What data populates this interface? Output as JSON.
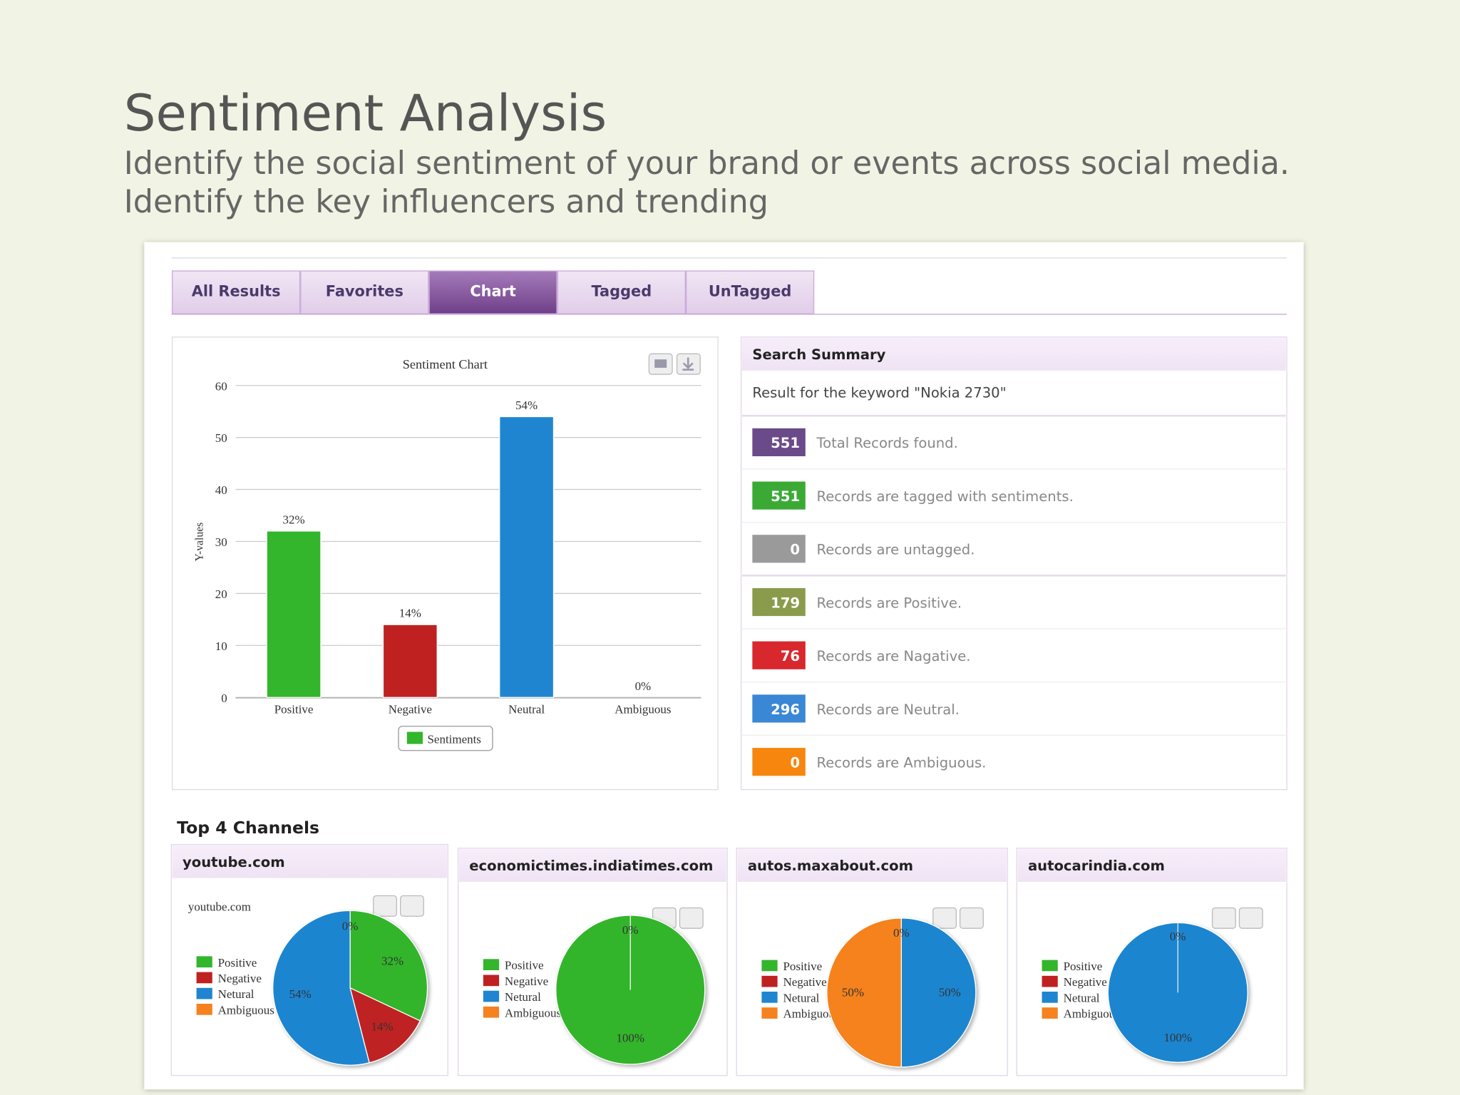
{
  "header": {
    "title": "Sentiment Analysis",
    "subtitle": [
      "Identify the social sentiment of your brand or events across social media.",
      "Identify the key influencers and trending"
    ]
  },
  "tabs": {
    "items": [
      "All Results",
      "Favorites",
      "Chart",
      "Tagged",
      "UnTagged"
    ],
    "active": 2
  },
  "chart_data": {
    "type": "bar",
    "title": "Sentiment Chart",
    "y_label": "Y-values",
    "categories": [
      "Positive",
      "Negative",
      "Neutral",
      "Ambiguous"
    ],
    "values": [
      32,
      14,
      54,
      0
    ],
    "value_labels": [
      "32%",
      "14%",
      "54%",
      "0%"
    ],
    "colors": [
      "#33b52c",
      "#bf2121",
      "#1f85d0",
      "#f5821f"
    ],
    "ylim": [
      0,
      60
    ],
    "yticks": [
      0,
      10,
      20,
      30,
      40,
      50,
      60
    ],
    "grid": true,
    "legend": "Sentiments"
  },
  "summary": {
    "title": "Search Summary",
    "keyword_text": "Result for the keyword \"Nokia 2730\"",
    "rows": [
      {
        "count": 551,
        "text": "Total Records found.",
        "color": "#6b4a8a"
      },
      {
        "count": 551,
        "text": "Records are tagged with sentiments.",
        "color": "#3aaa35"
      },
      {
        "count": 0,
        "text": "Records are untagged.",
        "color": "#9a9a9a"
      },
      {
        "count": 179,
        "text": "Records are Positive.",
        "color": "#8a9c4c"
      },
      {
        "count": 76,
        "text": "Records are Nagative.",
        "color": "#d9272e"
      },
      {
        "count": 296,
        "text": "Records are Neutral.",
        "color": "#3a87d5"
      },
      {
        "count": 0,
        "text": "Records are Ambiguous.",
        "color": "#f7860e"
      }
    ]
  },
  "channels": {
    "title": "Top 4 Channels",
    "legend": [
      "Positive",
      "Negative",
      "Netural",
      "Ambiguous"
    ],
    "colors": [
      "#33b52c",
      "#bf2121",
      "#1f85d0",
      "#f5821f"
    ],
    "items": [
      {
        "name": "youtube.com",
        "type": "pie",
        "chart_title": "youtube.com",
        "values": [
          32,
          14,
          54,
          0
        ],
        "value_labels": [
          "32%",
          "14%",
          "54%",
          "0%"
        ]
      },
      {
        "name": "economictimes.indiatimes.com",
        "type": "pie",
        "values": [
          100,
          0,
          0,
          0
        ],
        "value_labels": [
          "100%",
          "0%",
          null,
          null
        ]
      },
      {
        "name": "autos.maxabout.com",
        "type": "pie",
        "values": [
          0,
          0,
          50,
          50
        ],
        "value_labels": [
          "0%",
          null,
          "50%",
          "50%"
        ]
      },
      {
        "name": "autocarindia.com",
        "type": "pie",
        "values": [
          0,
          0,
          100,
          0
        ],
        "value_labels": [
          "0%",
          null,
          "100%",
          null
        ]
      }
    ]
  }
}
